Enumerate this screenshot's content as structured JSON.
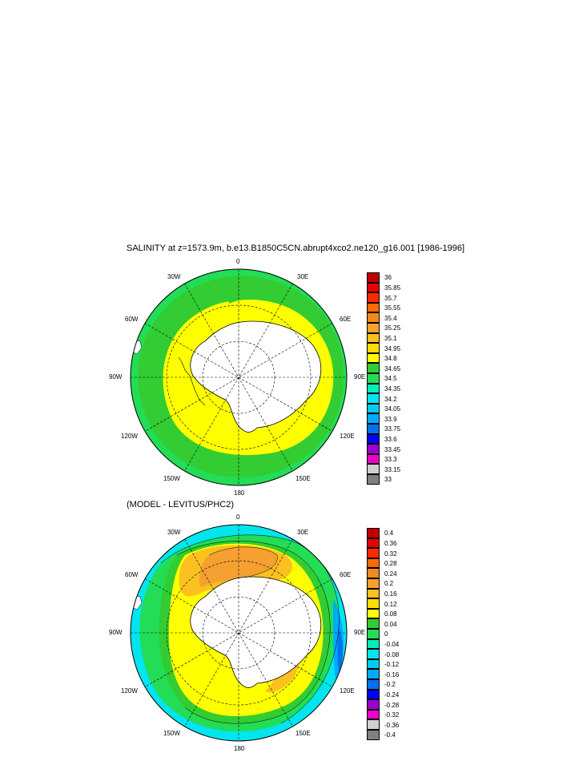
{
  "panel1": {
    "title": "SALINITY at z=1573.9m, b.e13.B1850C5CN.abrupt4xco2.ne120_g16.001 [1986-1996]",
    "lon_labels": {
      "n": "0",
      "nw": "30W",
      "ne": "30E",
      "wnw": "60W",
      "ene": "60E",
      "w": "90W",
      "e": "90E",
      "wsw": "120W",
      "ese": "120E",
      "ssw": "150W",
      "sse": "150E",
      "s": "180"
    },
    "legend": {
      "labels": [
        "36",
        "35.85",
        "35.7",
        "35.55",
        "35.4",
        "35.25",
        "35.1",
        "34.95",
        "34.8",
        "34.65",
        "34.5",
        "34.35",
        "34.2",
        "34.05",
        "33.9",
        "33.75",
        "33.6",
        "33.45",
        "33.3",
        "33.15",
        "33"
      ],
      "colors": [
        "#c00000",
        "#e80000",
        "#ff2a00",
        "#ff6a00",
        "#f08a1e",
        "#f5a030",
        "#fcc020",
        "#ffdc00",
        "#ffff00",
        "#33cc33",
        "#22dd55",
        "#00eebb",
        "#00e5ee",
        "#00ccee",
        "#00aaff",
        "#0070ee",
        "#0000ff",
        "#9900cc",
        "#ee00cc",
        "#d0d0d0",
        "#808080"
      ]
    }
  },
  "panel2": {
    "title": "(MODEL - LEVITUS/PHC2)",
    "lon_labels": {
      "n": "0",
      "nw": "30W",
      "ne": "30E",
      "wnw": "60W",
      "ene": "60E",
      "w": "90W",
      "e": "90E",
      "wsw": "120W",
      "ese": "120E",
      "ssw": "150W",
      "sse": "150E",
      "s": "180"
    },
    "legend": {
      "labels": [
        "0.4",
        "0.36",
        "0.32",
        "0.28",
        "0.24",
        "0.2",
        "0.16",
        "0.12",
        "0.08",
        "0.04",
        "0",
        "-0.04",
        "-0.08",
        "-0.12",
        "-0.16",
        "-0.2",
        "-0.24",
        "-0.28",
        "-0.32",
        "-0.36",
        "-0.4"
      ],
      "colors": [
        "#c00000",
        "#e80000",
        "#ff2a00",
        "#ff6a00",
        "#f08a1e",
        "#f5a030",
        "#fcc020",
        "#ffdc00",
        "#ffff00",
        "#33cc33",
        "#22dd55",
        "#00eebb",
        "#00e5ee",
        "#00ccee",
        "#00aaff",
        "#0070ee",
        "#0000ff",
        "#9900cc",
        "#ee00cc",
        "#d0d0d0",
        "#808080"
      ]
    }
  }
}
